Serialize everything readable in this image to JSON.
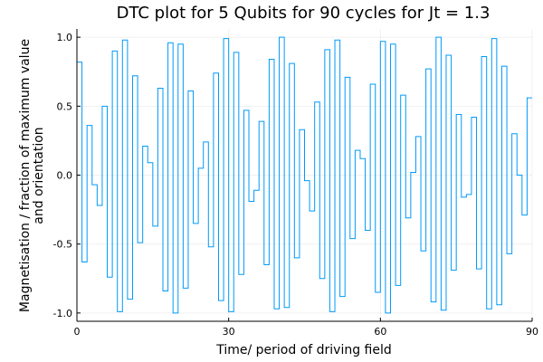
{
  "chart_data": {
    "type": "line",
    "step": "post",
    "title": "DTC plot for 5 Qubits for 90 cycles for Jt = 1.3",
    "xlabel": "Time/ period of driving field",
    "ylabel": [
      "Magnetisation / fraction of maximum value",
      "and orientation"
    ],
    "xlim": [
      0,
      90
    ],
    "ylim": [
      -1.06,
      1.06
    ],
    "xticks": [
      0,
      30,
      60,
      90
    ],
    "xtick_labels": [
      "0",
      "30",
      "60",
      "90"
    ],
    "yticks": [
      -1.0,
      -0.5,
      0.0,
      0.5,
      1.0
    ],
    "ytick_labels": [
      "-1.0",
      "-0.5",
      "0.0",
      "0.5",
      "1.0"
    ],
    "grid": true,
    "legend": false,
    "series_color": "#009AFA",
    "series": [
      {
        "x": [
          0,
          1,
          2,
          3,
          4,
          5,
          6,
          7,
          8,
          9,
          10,
          11,
          12,
          13,
          14,
          15,
          16,
          17,
          18,
          19,
          20,
          21,
          22,
          23,
          24,
          25,
          26,
          27,
          28,
          29,
          30,
          31,
          32,
          33,
          34,
          35,
          36,
          37,
          38,
          39,
          40,
          41,
          42,
          43,
          44,
          45,
          46,
          47,
          48,
          49,
          50,
          51,
          52,
          53,
          54,
          55,
          56,
          57,
          58,
          59,
          60,
          61,
          62,
          63,
          64,
          65,
          66,
          67,
          68,
          69,
          70,
          71,
          72,
          73,
          74,
          75,
          76,
          77,
          78,
          79,
          80,
          81,
          82,
          83,
          84,
          85,
          86,
          87,
          88,
          89,
          90
        ],
        "values": [
          0.82,
          -0.63,
          0.36,
          -0.07,
          -0.22,
          0.5,
          -0.74,
          0.9,
          -0.99,
          0.98,
          -0.9,
          0.72,
          -0.49,
          0.21,
          0.09,
          -0.37,
          0.63,
          -0.84,
          0.96,
          -1.0,
          0.95,
          -0.82,
          0.61,
          -0.35,
          0.05,
          0.24,
          -0.52,
          0.74,
          -0.91,
          0.99,
          -0.99,
          0.89,
          -0.72,
          0.47,
          -0.19,
          -0.11,
          0.39,
          -0.65,
          0.84,
          -0.97,
          1.0,
          -0.96,
          0.81,
          -0.6,
          0.33,
          -0.04,
          -0.26,
          0.53,
          -0.75,
          0.91,
          -0.99,
          0.98,
          -0.88,
          0.71,
          -0.46,
          0.18,
          0.12,
          -0.4,
          0.66,
          -0.85,
          0.97,
          -1.0,
          0.95,
          -0.8,
          0.58,
          -0.31,
          0.02,
          0.28,
          -0.55,
          0.77,
          -0.92,
          1.0,
          -0.98,
          0.87,
          -0.69,
          0.44,
          -0.16,
          -0.14,
          0.42,
          -0.68,
          0.86,
          -0.97,
          0.99,
          -0.94,
          0.79,
          -0.57,
          0.3,
          0.0,
          -0.29,
          0.56,
          0.56
        ]
      }
    ]
  }
}
